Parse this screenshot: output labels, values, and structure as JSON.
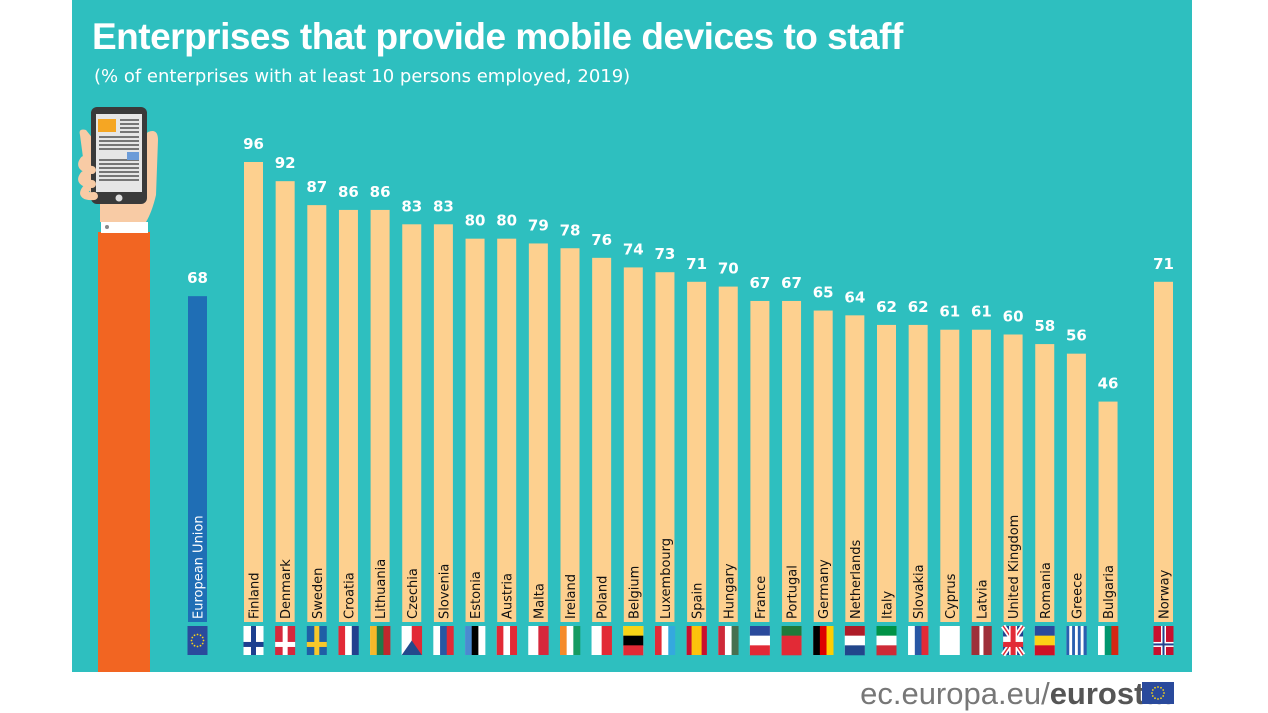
{
  "title": "Enterprises that provide mobile devices to staff",
  "subtitle": "(% of enterprises with at least 10 persons employed, 2019)",
  "footer": {
    "domain": "ec.europa.eu/",
    "brand": "eurostat"
  },
  "colors": {
    "background": "#2ebfbf",
    "bar": "#fdd08f",
    "eu_bar": "#1f6eb5",
    "value_label": "#ffffff",
    "arm": "#f26522"
  },
  "chart_data": {
    "type": "bar",
    "title": "Enterprises that provide mobile devices to staff",
    "subtitle": "(% of enterprises with at least 10 persons employed, 2019)",
    "xlabel": "",
    "ylabel": "",
    "ylim": [
      0,
      100
    ],
    "grid": false,
    "categories": [
      "European Union",
      "Finland",
      "Denmark",
      "Sweden",
      "Croatia",
      "Lithuania",
      "Czechia",
      "Slovenia",
      "Estonia",
      "Austria",
      "Malta",
      "Ireland",
      "Poland",
      "Belgium",
      "Luxembourg",
      "Spain",
      "Hungary",
      "France",
      "Portugal",
      "Germany",
      "Netherlands",
      "Italy",
      "Slovakia",
      "Cyprus",
      "Latvia",
      "United Kingdom",
      "Romania",
      "Greece",
      "Bulgaria",
      "Norway"
    ],
    "values": [
      68,
      96,
      92,
      87,
      86,
      86,
      83,
      83,
      80,
      80,
      79,
      78,
      76,
      74,
      73,
      71,
      70,
      67,
      67,
      65,
      64,
      62,
      62,
      61,
      61,
      60,
      58,
      56,
      46,
      71
    ],
    "groups": [
      "eu",
      "member",
      "member",
      "member",
      "member",
      "member",
      "member",
      "member",
      "member",
      "member",
      "member",
      "member",
      "member",
      "member",
      "member",
      "member",
      "member",
      "member",
      "member",
      "member",
      "member",
      "member",
      "member",
      "member",
      "member",
      "member",
      "member",
      "member",
      "member",
      "non-member"
    ],
    "flags": [
      {
        "bg": "#2a4a9c",
        "stripes": [],
        "stars": true
      },
      {
        "bg": "#ffffff",
        "cross": "#1d3f8f"
      },
      {
        "bg": "#d6283c",
        "cross": "#ffffff"
      },
      {
        "bg": "#1f5fa6",
        "cross": "#f7c82b"
      },
      {
        "stripes": [
          "#e22a36",
          "#ffffff",
          "#23408e"
        ]
      },
      {
        "stripes": [
          "#f6b82a",
          "#1f7a4a",
          "#c1272d"
        ]
      },
      {
        "stripes": [
          "#ffffff",
          "#e22a36"
        ],
        "triangle": "#234a8c"
      },
      {
        "stripes": [
          "#ffffff",
          "#2857a4",
          "#e22a36"
        ]
      },
      {
        "stripes": [
          "#4a8ad0",
          "#000000",
          "#ffffff"
        ]
      },
      {
        "stripes": [
          "#e22a36",
          "#ffffff",
          "#e22a36"
        ]
      },
      {
        "stripes": [
          "#ffffff",
          "#d6283c"
        ]
      },
      {
        "stripes": [
          "#f58a2a",
          "#ffffff",
          "#169b62"
        ]
      },
      {
        "stripes": [
          "#ffffff",
          "#e22a36"
        ]
      },
      {
        "stripes": [
          "#f7d417",
          "#000000",
          "#e22a36"
        ],
        "vertical": true
      },
      {
        "stripes": [
          "#e22a36",
          "#ffffff",
          "#34a9de"
        ]
      },
      {
        "stripes": [
          "#c8102e",
          "#fcc30b",
          "#fcc30b",
          "#c8102e"
        ]
      },
      {
        "stripes": [
          "#ce2939",
          "#ffffff",
          "#477050"
        ]
      },
      {
        "stripes": [
          "#2a4a9c",
          "#ffffff",
          "#e22a36"
        ],
        "vertical": true
      },
      {
        "stripes": [
          "#1f7a3a",
          "#e22a36",
          "#e22a36"
        ],
        "vertical": true
      },
      {
        "stripes": [
          "#000000",
          "#dd0000",
          "#ffce00"
        ]
      },
      {
        "stripes": [
          "#ae1c28",
          "#ffffff",
          "#21468b"
        ],
        "vertical": true
      },
      {
        "stripes": [
          "#009246",
          "#ffffff",
          "#ce2b37"
        ],
        "vertical": true
      },
      {
        "stripes": [
          "#ffffff",
          "#2857a4",
          "#e22a36"
        ]
      },
      {
        "bg": "#ffffff",
        "stripes": []
      },
      {
        "stripes": [
          "#9e3039",
          "#9e3039",
          "#ffffff",
          "#9e3039",
          "#9e3039"
        ]
      },
      {
        "bg": "#23408e",
        "cross": "#e22a36",
        "ukdiag": true
      },
      {
        "stripes": [
          "#2a4a9c",
          "#fcd116",
          "#ce1126"
        ],
        "vertical": true
      },
      {
        "stripes": [
          "#2a5fb0",
          "#ffffff",
          "#2a5fb0",
          "#ffffff",
          "#2a5fb0",
          "#ffffff",
          "#2a5fb0"
        ]
      },
      {
        "stripes": [
          "#ffffff",
          "#00966e",
          "#d62612"
        ]
      },
      {
        "bg": "#c8102e",
        "cross": "#ffffff",
        "inner": "#23408e"
      }
    ]
  }
}
